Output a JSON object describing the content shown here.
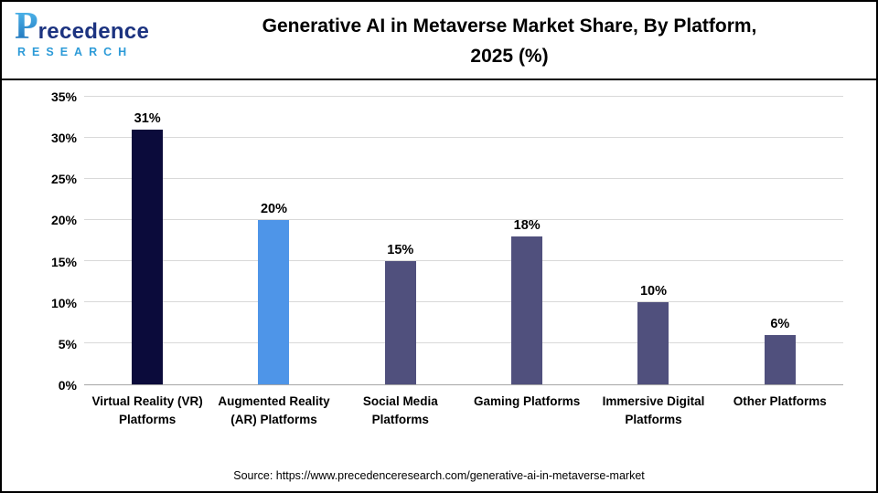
{
  "header": {
    "logo": {
      "p": "P",
      "name_rest": "recedence",
      "subtitle": "RESEARCH"
    },
    "title_line1": "Generative AI in Metaverse Market Share, By Platform,",
    "title_line2": "2025 (%)"
  },
  "footer": {
    "source": "Source: https://www.precedenceresearch.com/generative-ai-in-metaverse-market"
  },
  "chart_data": {
    "type": "bar",
    "title": "Generative AI in Metaverse Market Share, By Platform, 2025 (%)",
    "categories": [
      "Virtual Reality (VR) Platforms",
      "Augmented Reality (AR) Platforms",
      "Social Media Platforms",
      "Gaming Platforms",
      "Immersive Digital Platforms",
      "Other Platforms"
    ],
    "values": [
      31,
      20,
      15,
      18,
      10,
      6
    ],
    "value_labels": [
      "31%",
      "20%",
      "15%",
      "18%",
      "10%",
      "6%"
    ],
    "bar_colors": [
      "#0b0b3b",
      "#4e95e8",
      "#50507d",
      "#50507d",
      "#50507d",
      "#50507d"
    ],
    "xlabel": "",
    "ylabel": "",
    "ylim": [
      0,
      35
    ],
    "ytick_values": [
      35,
      30,
      25,
      20,
      15,
      10,
      5,
      0
    ],
    "ytick_labels": [
      "35%",
      "30%",
      "25%",
      "20%",
      "15%",
      "10%",
      "5%",
      "0%"
    ],
    "grid": true,
    "legend_position": "none"
  }
}
